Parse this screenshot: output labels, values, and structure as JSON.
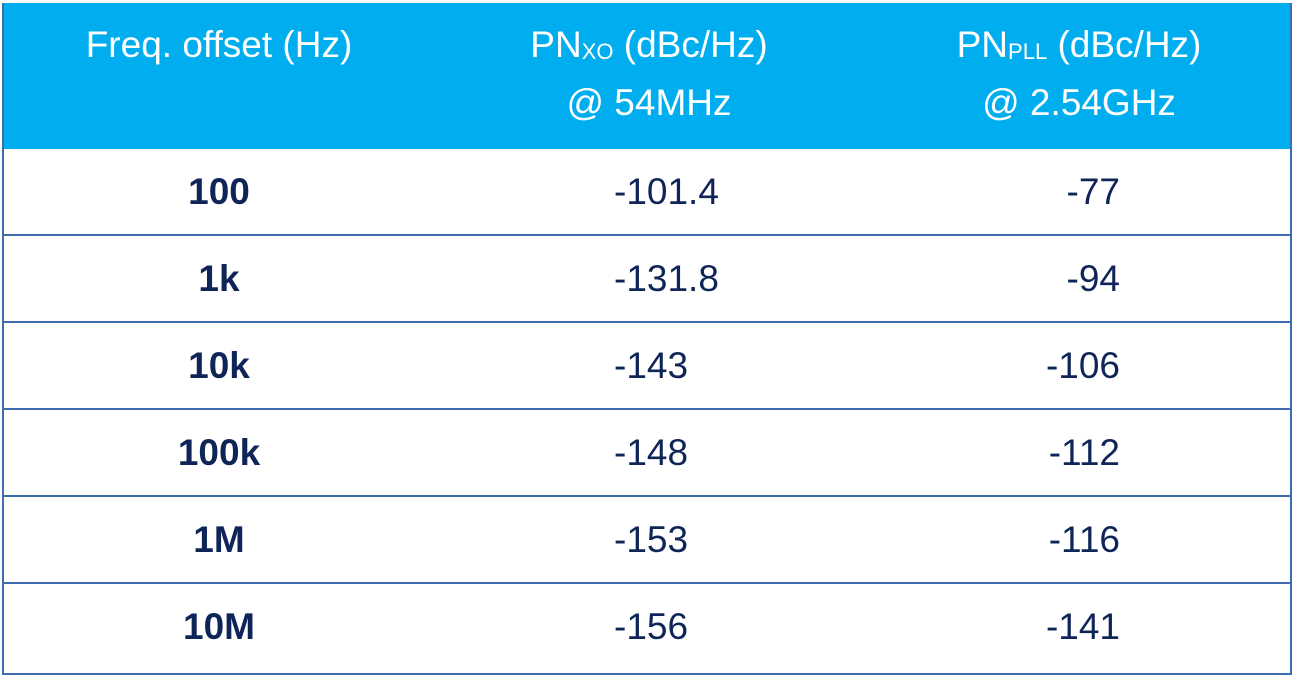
{
  "header": {
    "col1": "Freq. offset (Hz)",
    "col2": {
      "main": "PN",
      "sub": "XO",
      "unit": " (dBc/Hz)",
      "line2": "@ 54MHz"
    },
    "col3": {
      "main": "PN",
      "sub": "PLL",
      "unit": " (dBc/Hz)",
      "line2": "@ 2.54GHz"
    }
  },
  "rows": [
    {
      "offset": "100",
      "pn_xo": "-101.4",
      "pn_pll": "-77"
    },
    {
      "offset": "1k",
      "pn_xo": "-131.8",
      "pn_pll": "-94"
    },
    {
      "offset": "10k",
      "pn_xo": "-143",
      "pn_pll": "-106"
    },
    {
      "offset": "100k",
      "pn_xo": "-148",
      "pn_pll": "-112"
    },
    {
      "offset": "1M",
      "pn_xo": "-153",
      "pn_pll": "-116"
    },
    {
      "offset": "10M",
      "pn_xo": "-156",
      "pn_pll": "-141"
    }
  ],
  "colors": {
    "header_bg": "#00aeef",
    "header_text": "#ffffff",
    "body_text": "#0f2557",
    "border": "#3f6bb0"
  }
}
